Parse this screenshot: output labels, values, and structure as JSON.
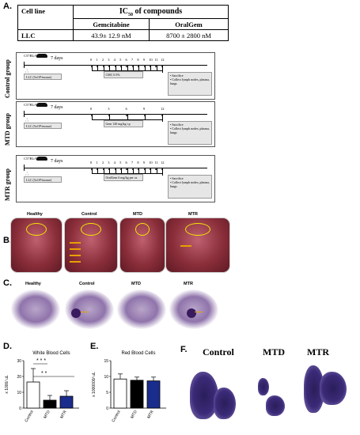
{
  "panels": {
    "A": "A.",
    "B": "B.",
    "C": "C.",
    "D": "D.",
    "E": "E.",
    "F": "F."
  },
  "table": {
    "header_cell": "Cell line",
    "header_title": "IC",
    "header_sub": "50",
    "header_rest": " of compounds",
    "col1": "Gemcitabine",
    "col2": "OralGem",
    "row_label": "LLC",
    "val1": "43.9± 12.9 nM",
    "val2": "8700 ± 2800 nM"
  },
  "groups": [
    {
      "label": "Control group",
      "mouse": "C57BL/6",
      "days": "7 days",
      "inj": "LLC (5x10⁵/mouse)",
      "treat": "CMC 0.5%",
      "ticks": [
        "0",
        "1",
        "2",
        "3",
        "4",
        "5",
        "6",
        "7",
        "8",
        "9",
        "10",
        "11",
        "12"
      ],
      "end": [
        "Sacrifice",
        "Collect lymph nodes, plasma, lungs"
      ]
    },
    {
      "label": "MTD group",
      "mouse": "C57BL/6",
      "days": "7 days",
      "inj": "LLC (5x10⁵/mouse)",
      "treat": "Gem 120 mg/kg i.p",
      "ticks": [
        "0",
        "3",
        "6",
        "9",
        "12"
      ],
      "end": [
        "Sacrifice",
        "Collect lymph nodes, plasma, lungs"
      ]
    },
    {
      "label": "MTR group",
      "mouse": "C57BL/6",
      "days": "7 days",
      "inj": "LLC (5x10⁵/mouse)",
      "treat": "OralGem 6 mg/kg per os",
      "ticks": [
        "0",
        "1",
        "2",
        "3",
        "4",
        "5",
        "6",
        "7",
        "8",
        "9",
        "10",
        "11",
        "12"
      ],
      "end": [
        "Sacrifice",
        "Collect lymph nodes, plasma, lungs"
      ]
    }
  ],
  "photo_labels": [
    "Healthy",
    "Control",
    "MTD",
    "MTR"
  ],
  "histo_labels": [
    "Healthy",
    "Control",
    "MTD",
    "MTR"
  ],
  "f_labels": [
    "Control",
    "MTD",
    "MTR"
  ],
  "colors": {
    "control": "#ffffff",
    "mtd": "#000000",
    "mtr": "#1a2d8c",
    "circle": "#f2e600",
    "arrow": "#e8a000"
  },
  "chart_data": [
    {
      "type": "bar",
      "title": "White Blood Cells",
      "ylabel": "x 1000/ uL",
      "categories": [
        "Control",
        "MTD",
        "MTR"
      ],
      "values": [
        16.5,
        5,
        7.5
      ],
      "errors": [
        8.5,
        3,
        3.5
      ],
      "ylim": [
        0,
        30
      ],
      "yticks": [
        "0",
        "10",
        "20",
        "30"
      ],
      "annotations": [
        "* * *",
        "* *"
      ]
    },
    {
      "type": "bar",
      "title": "Red Blood Cells",
      "ylabel": "x 1000000/ uL",
      "categories": [
        "Control",
        "MTD",
        "MTR"
      ],
      "values": [
        9.2,
        8.8,
        8.6
      ],
      "errors": [
        1.6,
        1.0,
        1.2
      ],
      "ylim": [
        0,
        15
      ],
      "yticks": [
        "0",
        "5",
        "10",
        "15"
      ]
    }
  ]
}
